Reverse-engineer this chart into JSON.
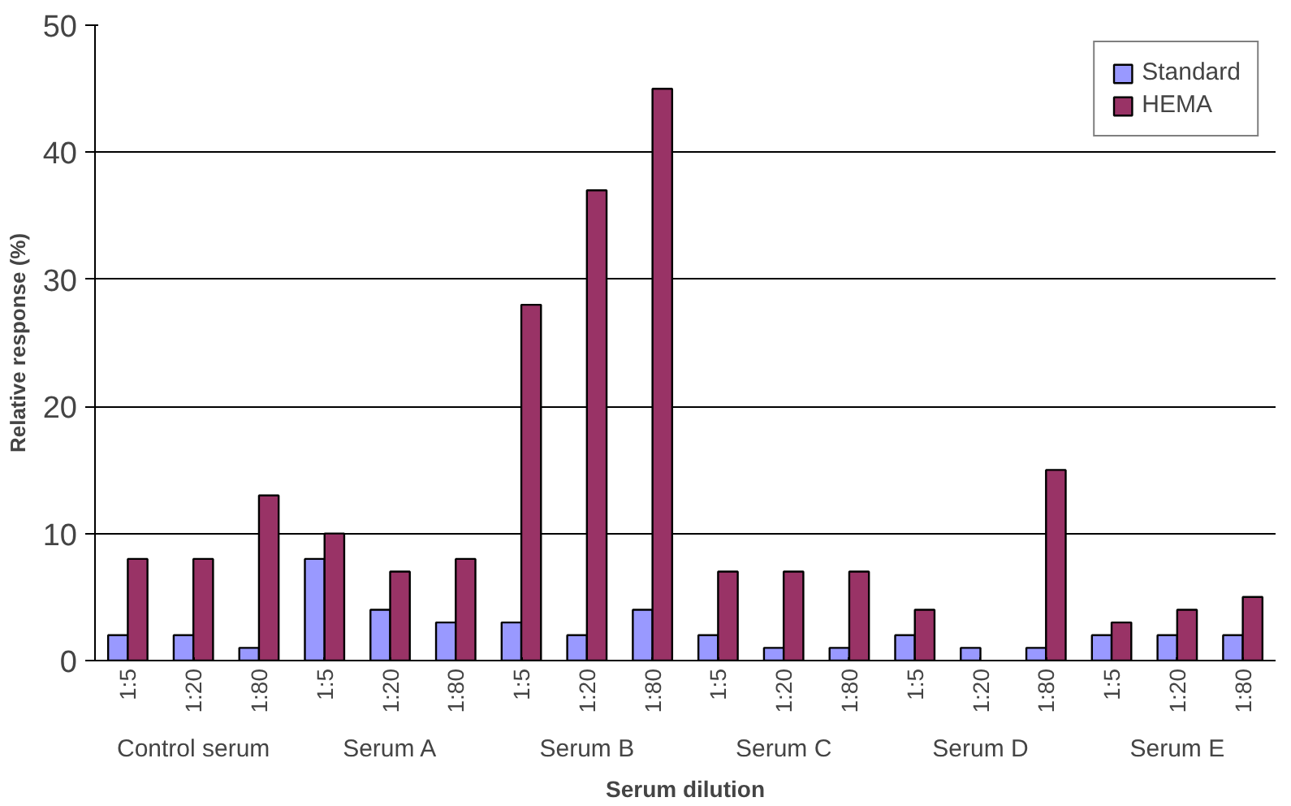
{
  "chart_data": {
    "type": "bar",
    "xlabel": "Serum dilution",
    "ylabel": "Relative response (%)",
    "categories": [
      "1:5",
      "1:20",
      "1:80",
      "1:5",
      "1:20",
      "1:80",
      "1:5",
      "1:20",
      "1:80",
      "1:5",
      "1:20",
      "1:80",
      "1:5",
      "1:20",
      "1:80",
      "1:5",
      "1:20",
      "1:80"
    ],
    "annotations": [
      "Control serum",
      "Serum A",
      "Serum B",
      "Serum C",
      "Serum D",
      "Serum E"
    ],
    "series": [
      {
        "name": "Standard",
        "color": "#9999ff",
        "values": [
          2,
          2,
          1,
          8,
          4,
          3,
          3,
          2,
          4,
          2,
          1,
          1,
          2,
          1,
          1,
          2,
          2,
          2
        ]
      },
      {
        "name": "HEMA",
        "color": "#993366",
        "values": [
          8,
          8,
          13,
          10,
          7,
          8,
          28,
          37,
          45,
          7,
          7,
          7,
          4,
          null,
          15,
          3,
          4,
          5
        ]
      }
    ],
    "ylim": [
      0,
      50
    ],
    "yticks": [
      0,
      10,
      20,
      30,
      40,
      50
    ],
    "grid": "y",
    "legend": "top right"
  }
}
